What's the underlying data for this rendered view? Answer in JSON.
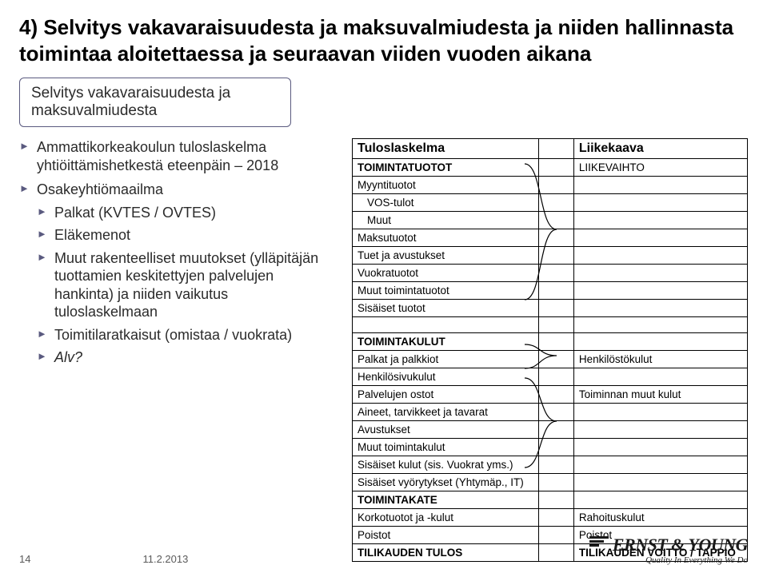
{
  "title": "4) Selvitys vakavaraisuudesta ja maksuvalmiudesta ja niiden hallinnasta toimintaa aloitettaessa ja seuraavan viiden vuoden aikana",
  "subtitle": "Selvitys vakavaraisuudesta ja maksuvalmiudesta",
  "bullets": [
    {
      "text": "Ammattikorkeakoulun tuloslaskelma yhtiöittämishetkestä eteenpäin – 2018",
      "children": []
    },
    {
      "text": "Osakeyhtiömaailma",
      "children": [
        {
          "text": "Palkat (KVTES / OVTES)"
        },
        {
          "text": "Eläkemenot"
        },
        {
          "text": "Muut rakenteelliset muutokset (ylläpitäjän tuottamien keskitettyjen palvelujen hankinta) ja niiden vaikutus tuloslaskelmaan"
        },
        {
          "text": "Toimitilaratkaisut (omistaa / vuokrata)"
        },
        {
          "text": "Alv?",
          "italic": true
        }
      ]
    }
  ],
  "table": {
    "head_left": "Tuloslaskelma",
    "head_right": "Liikekaava",
    "rows": [
      {
        "l": "TOIMINTATUOTOT",
        "r": "LIIKEVAIHTO",
        "lcls": "section"
      },
      {
        "l": "Myyntituotot",
        "r": "",
        "lcls": ""
      },
      {
        "l": "VOS-tulot",
        "r": "",
        "lcls": "indent1"
      },
      {
        "l": "Muut",
        "r": "",
        "lcls": "indent1"
      },
      {
        "l": "Maksutuotot",
        "r": "",
        "lcls": ""
      },
      {
        "l": "Tuet ja avustukset",
        "r": "",
        "lcls": ""
      },
      {
        "l": "Vuokratuotot",
        "r": "",
        "lcls": ""
      },
      {
        "l": "Muut toimintatuotot",
        "r": "",
        "lcls": ""
      },
      {
        "l": "Sisäiset tuotot",
        "r": "",
        "lcls": ""
      },
      {
        "l": "",
        "r": "",
        "lcls": ""
      },
      {
        "l": "TOIMINTAKULUT",
        "r": "",
        "lcls": "section"
      },
      {
        "l": "Palkat ja palkkiot",
        "r": "Henkilöstökulut",
        "lcls": ""
      },
      {
        "l": "Henkilösivukulut",
        "r": "",
        "lcls": ""
      },
      {
        "l": "Palvelujen ostot",
        "r": "Toiminnan muut kulut",
        "lcls": ""
      },
      {
        "l": "Aineet, tarvikkeet ja tavarat",
        "r": "",
        "lcls": ""
      },
      {
        "l": "Avustukset",
        "r": "",
        "lcls": ""
      },
      {
        "l": "Muut toimintakulut",
        "r": "",
        "lcls": ""
      },
      {
        "l": "Sisäiset kulut (sis. Vuokrat yms.)",
        "r": "",
        "lcls": ""
      },
      {
        "l": "Sisäiset vyörytykset (Yhtymäp., IT)",
        "r": "",
        "lcls": ""
      },
      {
        "l": "TOIMINTAKATE",
        "r": "",
        "lcls": "section"
      },
      {
        "l": "Korkotuotot ja -kulut",
        "r": "Rahoituskulut",
        "lcls": ""
      },
      {
        "l": "Poistot",
        "r": "Poistot",
        "lcls": ""
      },
      {
        "l": "TILIKAUDEN TULOS",
        "r": "TILIKAUDEN VOITTO / TAPPIO",
        "lcls": "section",
        "rcls": "section"
      }
    ]
  },
  "footer": {
    "page": "14",
    "date": "11.2.2013",
    "brand": "ERNST & YOUNG",
    "tagline": "Quality In Everything We Do"
  }
}
